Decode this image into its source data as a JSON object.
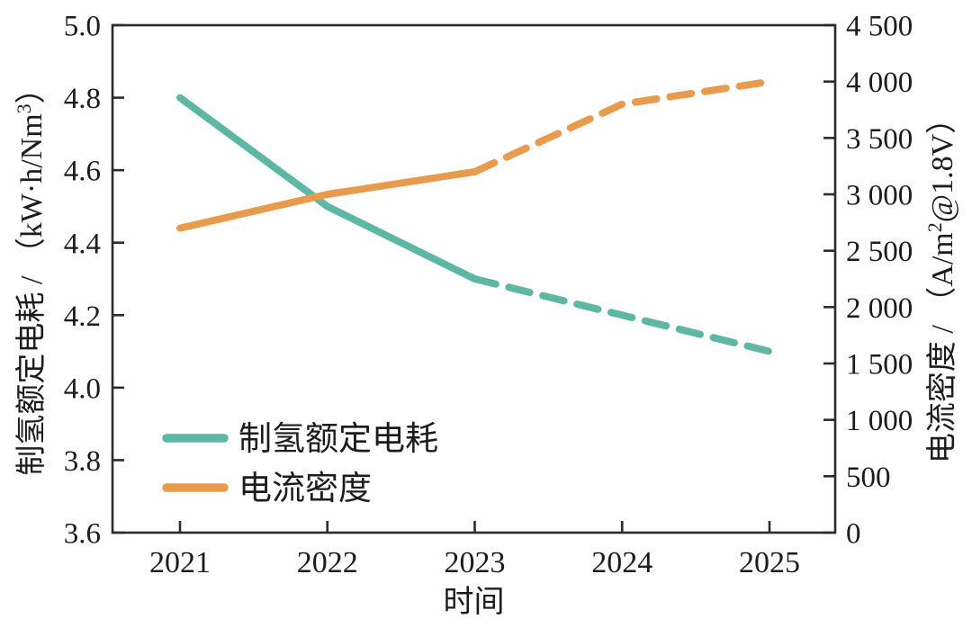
{
  "figure": {
    "background": "#ffffff",
    "frame_color": "#2b2b2b",
    "text_color": "#1c1c1c"
  },
  "chart_data": {
    "type": "line",
    "title": "",
    "xlabel": "时间",
    "x": [
      2021,
      2022,
      2023,
      2024,
      2025
    ],
    "x_tick_labels": [
      "2021",
      "2022",
      "2023",
      "2024",
      "2025"
    ],
    "grid": false,
    "frame": true,
    "left_axis": {
      "label": "制氢额定电耗 / （kW·h/Nm³）",
      "label_prefix": "制氢额定电耗 / （kW·h/Nm",
      "label_sup": "3",
      "label_suffix": "）",
      "min": 3.6,
      "max": 5.0,
      "step": 0.2,
      "tick_labels_ascending": [
        "3.6",
        "3.8",
        "4.0",
        "4.2",
        "4.4",
        "4.6",
        "4.8",
        "5.0"
      ]
    },
    "right_axis": {
      "label": "电流密度 / （A/m²@1.8V）",
      "label_prefix": "电流密度 / （A/m",
      "label_sup": "2",
      "label_suffix": "@1.8V）",
      "min": 0,
      "max": 4500,
      "step": 500,
      "tick_labels_ascending": [
        "0",
        "500",
        "1 000",
        "1 500",
        "2 000",
        "2 500",
        "3 000",
        "3 500",
        "4 000",
        "4 500"
      ]
    },
    "series": [
      {
        "key": "rated-energy-consumption",
        "name": "制氢额定电耗",
        "axis": "left",
        "color": "#5eb6a4",
        "values": [
          4.8,
          4.5,
          4.3,
          4.2,
          4.1
        ],
        "solid_until_x": 2023,
        "style": "solid 2021-2023, dashed 2023-2025"
      },
      {
        "key": "current-density",
        "name": "电流密度",
        "axis": "right",
        "color": "#e89b4d",
        "values": [
          2700,
          3000,
          3200,
          3800,
          4000
        ],
        "solid_until_x": 2023,
        "style": "solid 2021-2023, dashed 2023-2025"
      }
    ],
    "legend": {
      "position": "lower-left",
      "items": [
        {
          "key": "rated-energy-consumption",
          "label": "制氢额定电耗",
          "color": "#5eb6a4"
        },
        {
          "key": "current-density",
          "label": "电流密度",
          "color": "#e89b4d"
        }
      ]
    }
  }
}
